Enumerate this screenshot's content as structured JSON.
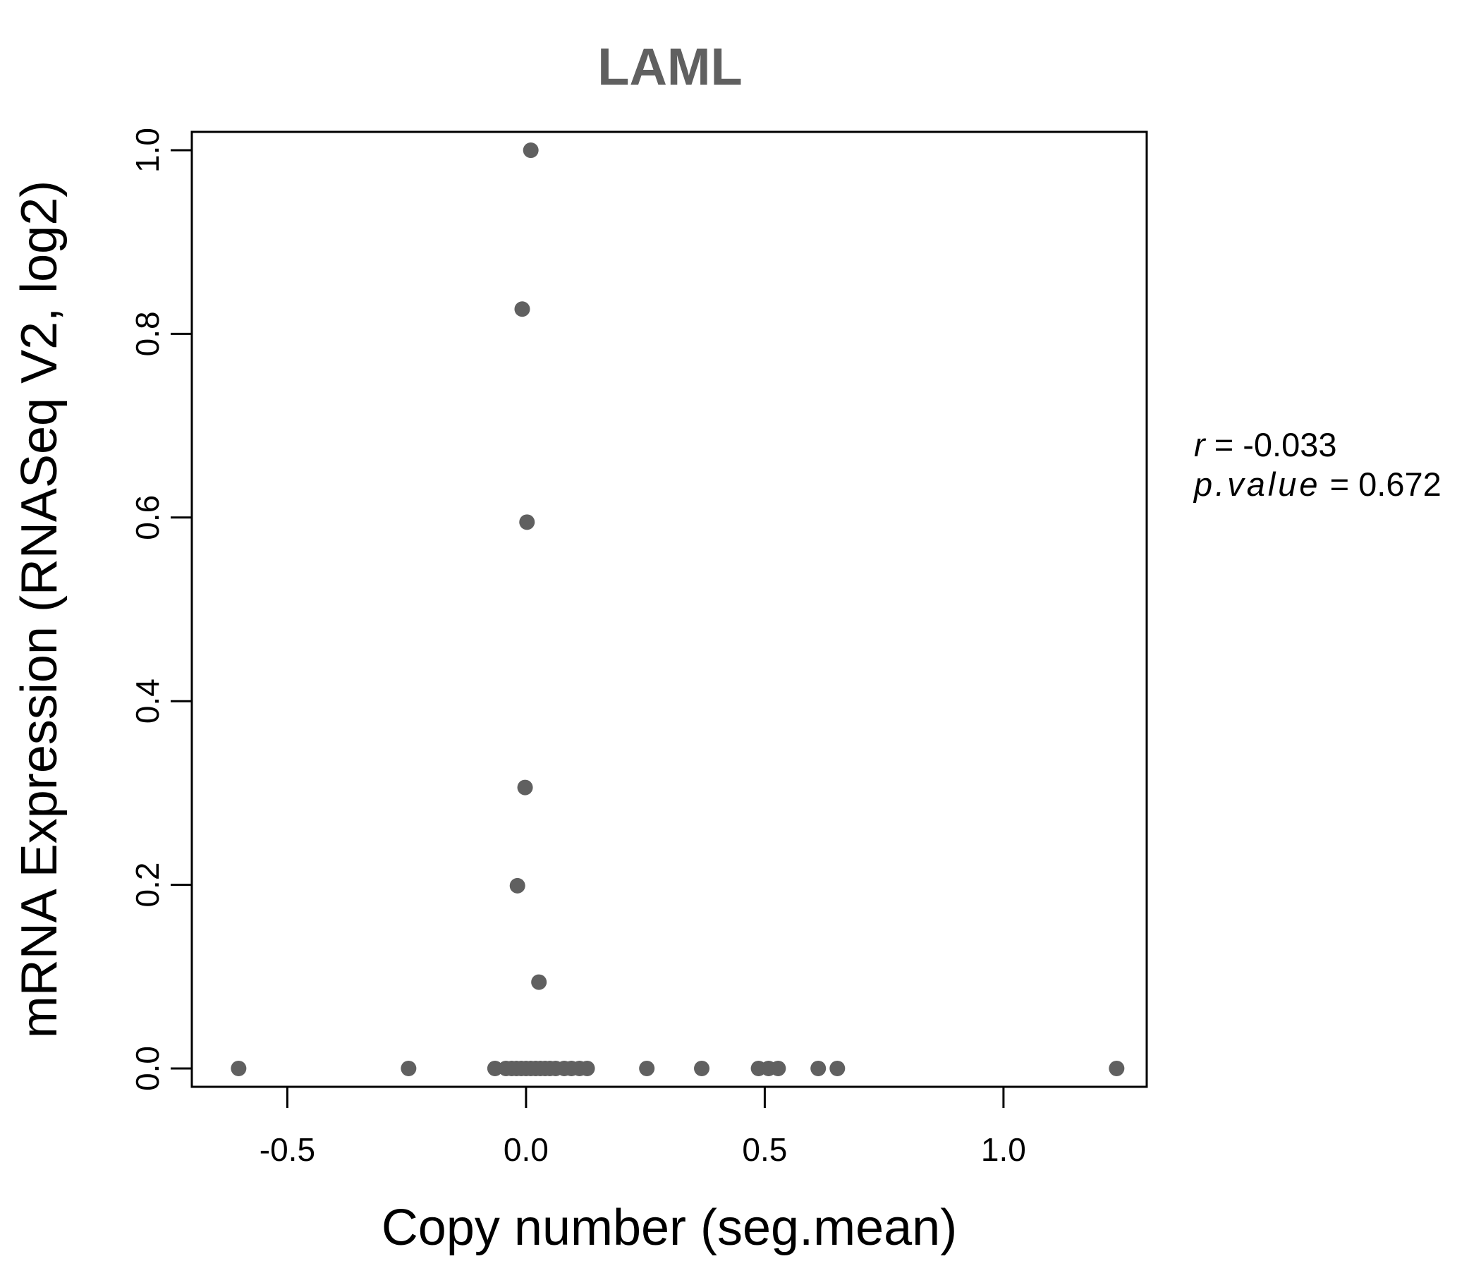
{
  "chart_data": {
    "type": "scatter",
    "title": "LAML",
    "xlabel": "Copy number (seg.mean)",
    "ylabel": "mRNA Expression (RNASeq V2, log2)",
    "xlim": [
      -0.7,
      1.3
    ],
    "ylim": [
      -0.02,
      1.02
    ],
    "x_ticks": [
      "-0.5",
      "0.0",
      "0.5",
      "1.0"
    ],
    "y_ticks": [
      "0.0",
      "0.2",
      "0.4",
      "0.6",
      "0.8",
      "1.0"
    ],
    "grid": false,
    "point_color": "#606060",
    "points": [
      {
        "x": 0.01,
        "y": 1.0
      },
      {
        "x": -0.008,
        "y": 0.827
      },
      {
        "x": 0.002,
        "y": 0.595
      },
      {
        "x": -0.002,
        "y": 0.306
      },
      {
        "x": -0.018,
        "y": 0.199
      },
      {
        "x": 0.027,
        "y": 0.094
      },
      {
        "x": -0.602,
        "y": 0.0
      },
      {
        "x": -0.246,
        "y": 0.0
      },
      {
        "x": -0.065,
        "y": 0.0
      },
      {
        "x": -0.042,
        "y": 0.0
      },
      {
        "x": -0.03,
        "y": 0.0
      },
      {
        "x": -0.02,
        "y": 0.0
      },
      {
        "x": -0.01,
        "y": 0.0
      },
      {
        "x": 0.0,
        "y": 0.0
      },
      {
        "x": 0.01,
        "y": 0.0
      },
      {
        "x": 0.02,
        "y": 0.0
      },
      {
        "x": 0.03,
        "y": 0.0
      },
      {
        "x": 0.04,
        "y": 0.0
      },
      {
        "x": 0.05,
        "y": 0.0
      },
      {
        "x": 0.062,
        "y": 0.0
      },
      {
        "x": 0.08,
        "y": 0.0
      },
      {
        "x": 0.095,
        "y": 0.0
      },
      {
        "x": 0.112,
        "y": 0.0
      },
      {
        "x": 0.128,
        "y": 0.0
      },
      {
        "x": 0.253,
        "y": 0.0
      },
      {
        "x": 0.368,
        "y": 0.0
      },
      {
        "x": 0.487,
        "y": 0.0
      },
      {
        "x": 0.508,
        "y": 0.0
      },
      {
        "x": 0.528,
        "y": 0.0
      },
      {
        "x": 0.612,
        "y": 0.0
      },
      {
        "x": 0.652,
        "y": 0.0
      },
      {
        "x": 1.237,
        "y": 0.0
      }
    ],
    "annotations": {
      "r_label": "r",
      "r_eq": " = ",
      "r_value": "-0.033",
      "p_label": "p.value",
      "p_eq": " = ",
      "p_value": "0.672"
    }
  }
}
